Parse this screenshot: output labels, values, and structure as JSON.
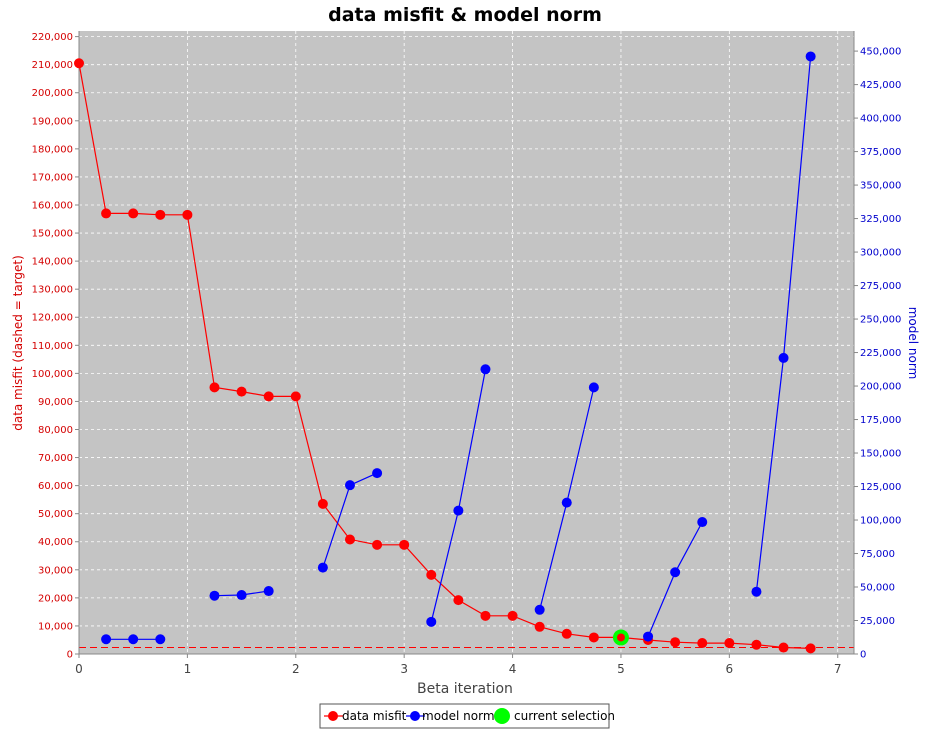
{
  "chart_data": {
    "type": "line",
    "title": "data misfit & model norm",
    "xlabel": "Beta iteration",
    "ylabel_left": "data misfit (dashed = target)",
    "ylabel_right": "model norm",
    "xlim": [
      0,
      7.15
    ],
    "ylim_left": [
      0,
      222000
    ],
    "ylim_right": [
      0,
      465000
    ],
    "x_ticks": [
      0,
      1,
      2,
      3,
      4,
      5,
      6,
      7
    ],
    "y_left_ticks": [
      0,
      10000,
      20000,
      30000,
      40000,
      50000,
      60000,
      70000,
      80000,
      90000,
      100000,
      110000,
      120000,
      130000,
      140000,
      150000,
      160000,
      170000,
      180000,
      190000,
      200000,
      210000,
      220000
    ],
    "y_right_ticks": [
      0,
      25000,
      50000,
      75000,
      100000,
      125000,
      150000,
      175000,
      200000,
      225000,
      250000,
      275000,
      300000,
      325000,
      350000,
      375000,
      400000,
      425000,
      450000
    ],
    "target_misfit": 2300,
    "grid": true,
    "legend_position": "bottom",
    "colors": {
      "misfit": "#ff0000",
      "norm": "#0000ff",
      "selection": "#00ff00",
      "plot_bg": "#c4c4c4",
      "grid": "#ffffff",
      "left_axis": "#d40000",
      "right_axis": "#0000cc"
    },
    "series": [
      {
        "name": "data misfit",
        "axis": "left",
        "segments": [
          [
            [
              0,
              210500
            ],
            [
              0.25,
              157000
            ],
            [
              0.5,
              157000
            ],
            [
              0.75,
              156500
            ],
            [
              1.0,
              156500
            ],
            [
              1.25,
              95000
            ],
            [
              1.5,
              93500
            ],
            [
              1.75,
              91800
            ],
            [
              2.0,
              91800
            ],
            [
              2.25,
              53500
            ],
            [
              2.5,
              40800
            ],
            [
              2.75,
              38900
            ],
            [
              3.0,
              38900
            ],
            [
              3.25,
              28200
            ],
            [
              3.5,
              19200
            ],
            [
              3.75,
              13600
            ],
            [
              4.0,
              13600
            ],
            [
              4.25,
              9700
            ],
            [
              4.5,
              7200
            ],
            [
              4.75,
              5900
            ],
            [
              5.0,
              5900
            ],
            [
              5.25,
              5000
            ],
            [
              5.5,
              4200
            ],
            [
              5.75,
              3900
            ],
            [
              6.0,
              3900
            ],
            [
              6.25,
              3300
            ],
            [
              6.5,
              2300
            ],
            [
              6.75,
              2000
            ]
          ]
        ]
      },
      {
        "name": "model norm",
        "axis": "right",
        "segments": [
          [
            [
              0.25,
              11000
            ],
            [
              0.5,
              11000
            ],
            [
              0.75,
              11000
            ]
          ],
          [
            [
              1.25,
              43500
            ],
            [
              1.5,
              44000
            ],
            [
              1.75,
              47000
            ]
          ],
          [
            [
              2.25,
              64500
            ],
            [
              2.5,
              126000
            ],
            [
              2.75,
              135000
            ]
          ],
          [
            [
              3.25,
              24000
            ],
            [
              3.5,
              107000
            ],
            [
              3.75,
              212500
            ]
          ],
          [
            [
              4.25,
              33000
            ],
            [
              4.5,
              113000
            ],
            [
              4.75,
              199000
            ]
          ],
          [
            [
              5.25,
              13000
            ],
            [
              5.5,
              61000
            ],
            [
              5.75,
              98500
            ]
          ],
          [
            [
              6.25,
              46500
            ],
            [
              6.5,
              221000
            ],
            [
              6.75,
              446000
            ]
          ]
        ]
      }
    ],
    "current_selection": {
      "name": "current selection",
      "x": 5.0,
      "y": 5900
    }
  }
}
